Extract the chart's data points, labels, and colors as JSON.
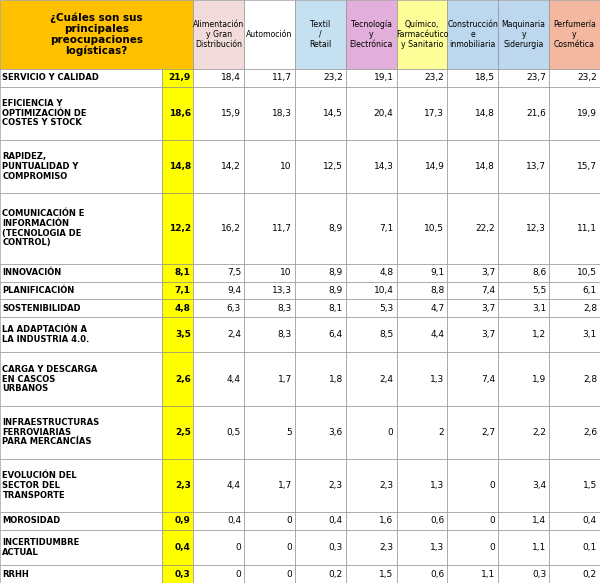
{
  "header_colors": [
    "#F2DCDB",
    "#FFFFFF",
    "#C5E0F0",
    "#E2AFDB",
    "#FFFF99",
    "#BDD7EE",
    "#BDD7EE",
    "#F4B8A0"
  ],
  "col_headers": [
    "Alimentación\ny Gran\nDistribución",
    "Automoción",
    "Textil\n/\nRetail",
    "Tecnología\ny\nElectrónica",
    "Químico,\nFarmaсéutico\ny Sanitario",
    "Construcción\ne\ninmobiliaria",
    "Maquinaria\ny\nSiderurgia",
    "Perfumería\ny\nCosmética"
  ],
  "row_labels": [
    "SERVICIO Y CALIDAD",
    "EFICIENCIA Y\nOPTIMIZACIÓN DE\nCOSTES Y STOCK",
    "RAPIDEZ,\nPUNTUALIDAD Y\nCOMPROMISO",
    "COMUNICACIÓN E\nINFORMACIÓN\n(TECNOLOGIA DE\nCONTROL)",
    "INNOVACIÓN",
    "PLANIFICACIÓN",
    "SOSTENIBILIDAD",
    "LA ADAPTACIÓN A\nLA INDUSTRIA 4.0.",
    "CARGA Y DESCARGA\nEN CASCOS\nURBANOS",
    "INFRAESTRUCTURAS\nFERROVIARIAS\nPARA MERCANCÍAS",
    "EVOLUCIÓN DEL\nSECTOR DEL\nTRANSPORTE",
    "MOROSIDAD",
    "INCERTIDUMBRE\nACTUAL",
    "RRHH"
  ],
  "main_values": [
    "21,9",
    "18,6",
    "14,8",
    "12,2",
    "8,1",
    "7,1",
    "4,8",
    "3,5",
    "2,6",
    "2,5",
    "2,3",
    "0,9",
    "0,4",
    "0,3"
  ],
  "data": [
    [
      "18,4",
      "11,7",
      "23,2",
      "19,1",
      "23,2",
      "18,5",
      "23,7",
      "23,2"
    ],
    [
      "15,9",
      "18,3",
      "14,5",
      "20,4",
      "17,3",
      "14,8",
      "21,6",
      "19,9"
    ],
    [
      "14,2",
      "10",
      "12,5",
      "14,3",
      "14,9",
      "14,8",
      "13,7",
      "15,7"
    ],
    [
      "16,2",
      "11,7",
      "8,9",
      "7,1",
      "10,5",
      "22,2",
      "12,3",
      "11,1"
    ],
    [
      "7,5",
      "10",
      "8,9",
      "4,8",
      "9,1",
      "3,7",
      "8,6",
      "10,5"
    ],
    [
      "9,4",
      "13,3",
      "8,9",
      "10,4",
      "8,8",
      "7,4",
      "5,5",
      "6,1"
    ],
    [
      "6,3",
      "8,3",
      "8,1",
      "5,3",
      "4,7",
      "3,7",
      "3,1",
      "2,8"
    ],
    [
      "2,4",
      "8,3",
      "6,4",
      "8,5",
      "4,4",
      "3,7",
      "1,2",
      "3,1"
    ],
    [
      "4,4",
      "1,7",
      "1,8",
      "2,4",
      "1,3",
      "7,4",
      "1,9",
      "2,8"
    ],
    [
      "0,5",
      "5",
      "3,6",
      "0",
      "2",
      "2,7",
      "2,2",
      "2,6"
    ],
    [
      "4,4",
      "1,7",
      "2,3",
      "2,3",
      "1,3",
      "0",
      "3,4",
      "1,5"
    ],
    [
      "0,4",
      "0",
      "0,4",
      "1,6",
      "0,6",
      "0",
      "1,4",
      "0,4"
    ],
    [
      "0",
      "0",
      "0,3",
      "2,3",
      "1,3",
      "0",
      "1,1",
      "0,1"
    ],
    [
      "0",
      "0",
      "0,2",
      "1,5",
      "0,6",
      "1,1",
      "0,3",
      "0,2"
    ]
  ],
  "main_col_bg": "#FFFF00",
  "header_title_bg": "#FFC000",
  "row_bg": "#FFFFFF",
  "line_counts": [
    1,
    3,
    3,
    4,
    1,
    1,
    1,
    2,
    3,
    3,
    3,
    1,
    2,
    1
  ]
}
